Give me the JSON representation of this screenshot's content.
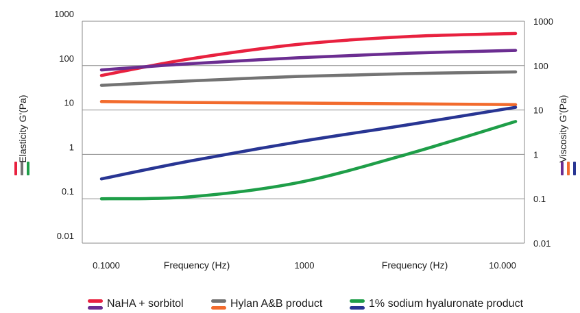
{
  "chart_data": {
    "type": "line",
    "y_scale": "log",
    "ylim": [
      0.01,
      1000
    ],
    "y_ticks": [
      "0.01",
      "0.1",
      "1",
      "10",
      "100",
      "1000"
    ],
    "y_ticks_right": [
      "0.01",
      "0.1",
      "1",
      "10",
      "100",
      "1000"
    ],
    "x_tick_labels": [
      "0.1000",
      "1000",
      "10.000"
    ],
    "x_axis_titles": [
      "Frequency (Hz)",
      "Frequency (Hz)"
    ],
    "ylabel_left": "Elasticity G'(Pa)",
    "ylabel_right": "Viscosity G'(Pa)",
    "grid": "horizontal",
    "legend_position": "bottom",
    "x": [
      0.1,
      0.5,
      1,
      1.5,
      2
    ],
    "series": [
      {
        "key": "naha_elastic",
        "color": "#e8213f",
        "values": [
          60,
          140,
          300,
          450,
          530
        ]
      },
      {
        "key": "naha_viscous",
        "color": "#6b2d91",
        "values": [
          80,
          110,
          150,
          190,
          220
        ]
      },
      {
        "key": "hylan_elastic",
        "color": "#737373",
        "values": [
          36,
          45,
          57,
          66,
          72
        ]
      },
      {
        "key": "hylan_viscous",
        "color": "#f26b2d",
        "values": [
          15.5,
          14.8,
          14.3,
          13.8,
          13.2
        ]
      },
      {
        "key": "soda_elastic",
        "color": "#1e9e48",
        "values": [
          0.1,
          0.11,
          0.23,
          1.0,
          5.5
        ]
      },
      {
        "key": "soda_viscous",
        "color": "#283593",
        "values": [
          0.28,
          0.7,
          1.9,
          4.6,
          11.5
        ]
      }
    ],
    "legend": [
      {
        "label": "NaHA +  sorbitol",
        "colors": [
          "#e8213f",
          "#6b2d91"
        ]
      },
      {
        "label": "Hylan A&B product",
        "colors": [
          "#737373",
          "#f26b2d"
        ]
      },
      {
        "label": "1% sodium hyaluronate product",
        "colors": [
          "#1e9e48",
          "#283593"
        ]
      }
    ],
    "left_marker_colors": [
      "#e8213f",
      "#737373",
      "#1e9e48"
    ],
    "right_marker_colors": [
      "#6b2d91",
      "#f26b2d",
      "#283593"
    ]
  }
}
